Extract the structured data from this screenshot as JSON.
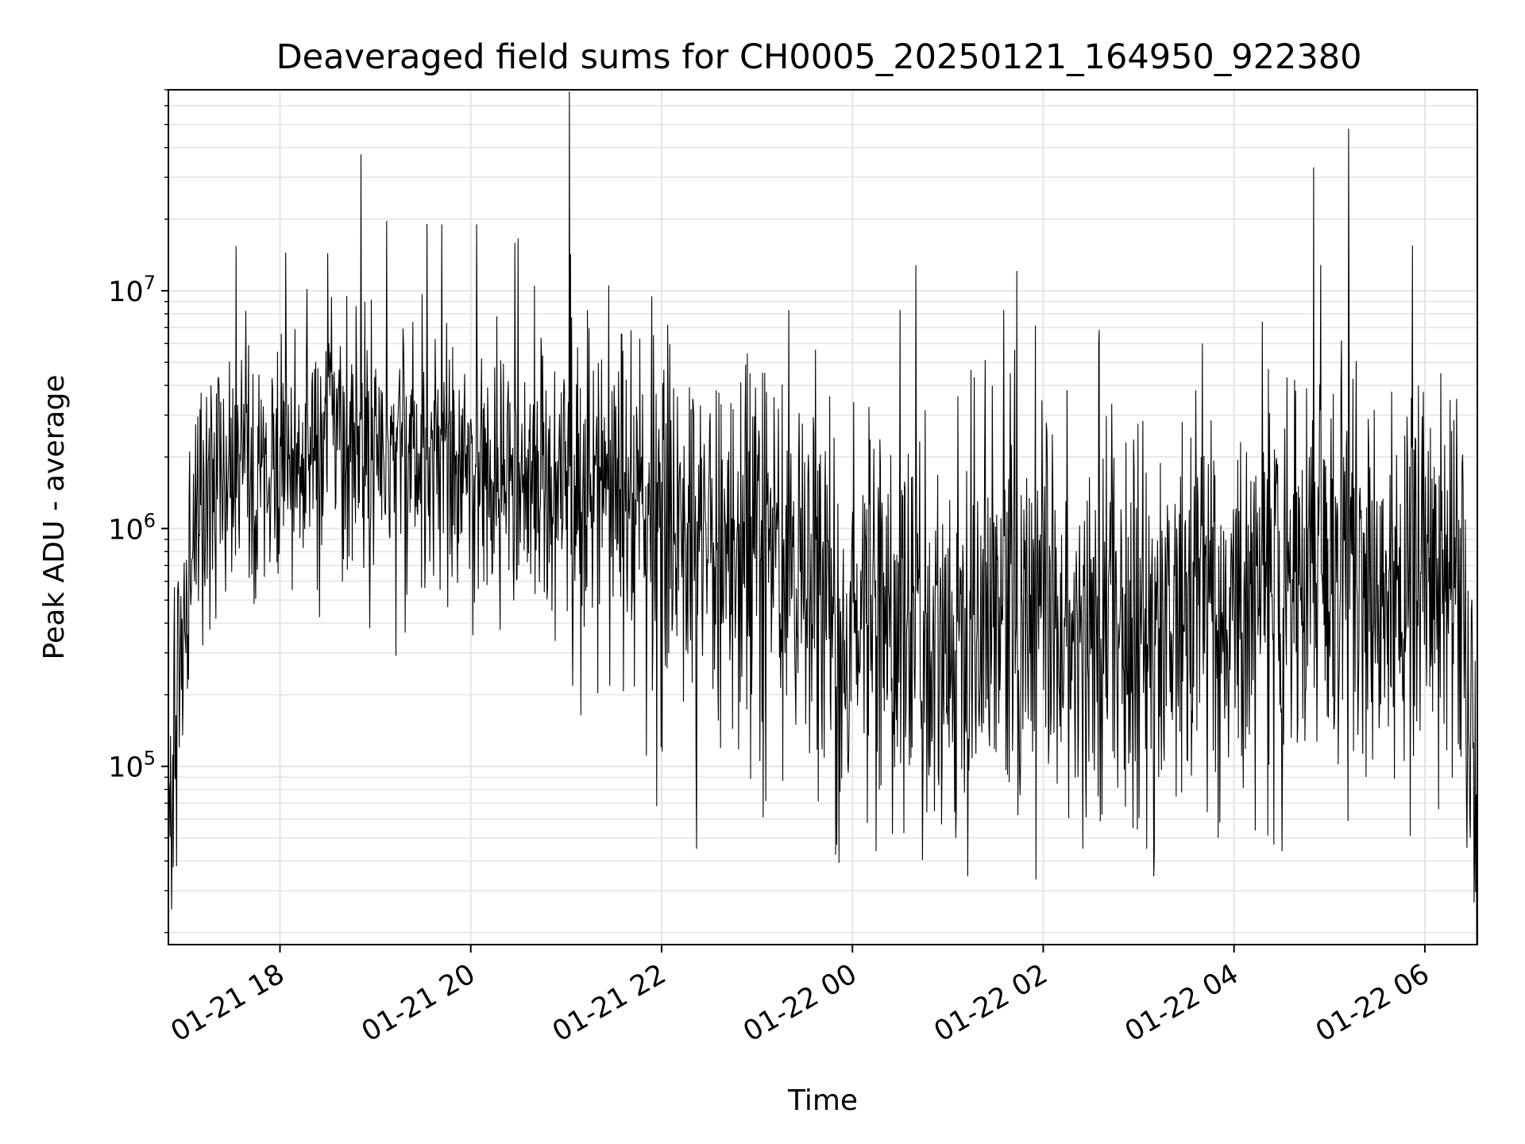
{
  "chart_data": {
    "type": "line",
    "title": "Deaveraged field sums for CH0005_20250121_164950_922380",
    "xlabel": "Time",
    "ylabel": "Peak ADU - average",
    "y_scale": "log",
    "ylim": [
      17800,
      70000000
    ],
    "xlim": [
      "2025-01-21 16:49:50",
      "2025-01-22 06:33:00"
    ],
    "grid": true,
    "line_color": "#000000",
    "x_ticks": [
      {
        "t": "2025-01-21 18:00",
        "label": "01-21 18"
      },
      {
        "t": "2025-01-21 20:00",
        "label": "01-21 20"
      },
      {
        "t": "2025-01-21 22:00",
        "label": "01-21 22"
      },
      {
        "t": "2025-01-22 00:00",
        "label": "01-22 00"
      },
      {
        "t": "2025-01-22 02:00",
        "label": "01-22 02"
      },
      {
        "t": "2025-01-22 04:00",
        "label": "01-22 04"
      },
      {
        "t": "2025-01-22 06:00",
        "label": "01-22 06"
      }
    ],
    "y_ticks": [
      {
        "value": 100000,
        "base": "10",
        "exp": "5"
      },
      {
        "value": 1000000,
        "base": "10",
        "exp": "6"
      },
      {
        "value": 10000000,
        "base": "10",
        "exp": "7"
      }
    ],
    "trend": [
      {
        "t": "2025-01-21 16:50",
        "y": 80000
      },
      {
        "t": "2025-01-21 16:55",
        "y": 150000
      },
      {
        "t": "2025-01-21 17:00",
        "y": 500000
      },
      {
        "t": "2025-01-21 17:10",
        "y": 1300000
      },
      {
        "t": "2025-01-21 17:30",
        "y": 1800000
      },
      {
        "t": "2025-01-21 18:00",
        "y": 2200000
      },
      {
        "t": "2025-01-21 19:00",
        "y": 2200000
      },
      {
        "t": "2025-01-21 20:00",
        "y": 1800000
      },
      {
        "t": "2025-01-21 21:00",
        "y": 1300000
      },
      {
        "t": "2025-01-21 22:00",
        "y": 1000000
      },
      {
        "t": "2025-01-21 23:00",
        "y": 800000
      },
      {
        "t": "2025-01-22 00:00",
        "y": 400000
      },
      {
        "t": "2025-01-22 01:00",
        "y": 330000
      },
      {
        "t": "2025-01-22 02:00",
        "y": 420000
      },
      {
        "t": "2025-01-22 03:00",
        "y": 400000
      },
      {
        "t": "2025-01-22 04:00",
        "y": 550000
      },
      {
        "t": "2025-01-22 05:00",
        "y": 600000
      },
      {
        "t": "2025-01-22 06:00",
        "y": 700000
      },
      {
        "t": "2025-01-22 06:25",
        "y": 500000
      },
      {
        "t": "2025-01-22 06:30",
        "y": 150000
      },
      {
        "t": "2025-01-22 06:33",
        "y": 70000
      }
    ],
    "peaks": [
      {
        "t": "2025-01-21 18:42",
        "y": 9500000
      },
      {
        "t": "2025-01-21 20:40",
        "y": 10500000
      },
      {
        "t": "2025-01-21 21:55",
        "y": 6500000
      },
      {
        "t": "2025-01-21 23:20",
        "y": 8300000
      },
      {
        "t": "2025-01-22 00:30",
        "y": 8300000
      },
      {
        "t": "2025-01-22 00:40",
        "y": 12800000
      },
      {
        "t": "2025-01-22 01:35",
        "y": 8300000
      },
      {
        "t": "2025-01-22 02:35",
        "y": 6000000
      },
      {
        "t": "2025-01-22 03:40",
        "y": 6000000
      },
      {
        "t": "2025-01-22 04:50",
        "y": 33000000
      },
      {
        "t": "2025-01-22 05:12",
        "y": 48000000
      },
      {
        "t": "2025-01-22 05:52",
        "y": 15500000
      },
      {
        "t": "2025-01-22 06:10",
        "y": 4500000
      }
    ],
    "troughs": [
      {
        "t": "2025-01-21 16:52",
        "y": 25000
      },
      {
        "t": "2025-01-21 16:55",
        "y": 38000
      },
      {
        "t": "2025-01-21 21:57",
        "y": 68000
      },
      {
        "t": "2025-01-21 22:22",
        "y": 45000
      },
      {
        "t": "2025-01-22 00:15",
        "y": 44000
      },
      {
        "t": "2025-01-22 00:25",
        "y": 52000
      },
      {
        "t": "2025-01-22 01:05",
        "y": 50000
      },
      {
        "t": "2025-01-22 02:25",
        "y": 45000
      },
      {
        "t": "2025-01-22 03:05",
        "y": 45000
      },
      {
        "t": "2025-01-22 04:30",
        "y": 44000
      },
      {
        "t": "2025-01-22 06:33",
        "y": 58000
      }
    ],
    "noise_spread_decades": 0.35
  }
}
